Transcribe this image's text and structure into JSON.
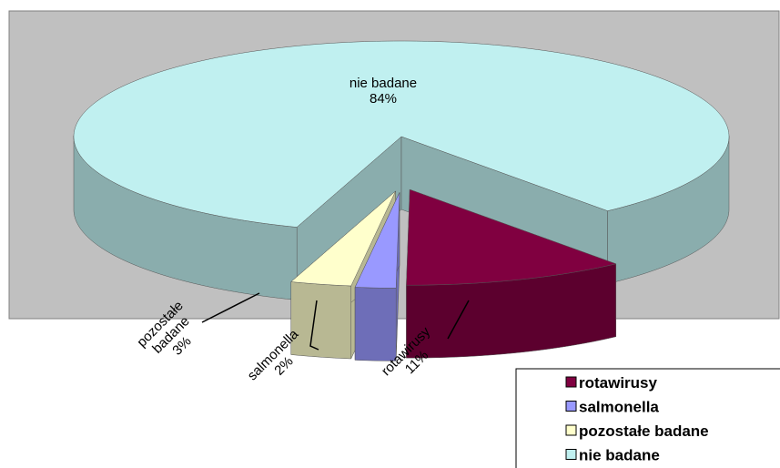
{
  "chart_data": {
    "type": "pie",
    "categories": [
      "rotawirusy",
      "salmonella",
      "pozostałe badane",
      "nie badane"
    ],
    "values": [
      11,
      2,
      3,
      84
    ],
    "value_labels": [
      "11%",
      "2%",
      "3%",
      "84%"
    ],
    "colors": [
      "#800040",
      "#9999ff",
      "#ffffcc",
      "#c0f0f0"
    ],
    "legend": "bottom-right"
  }
}
